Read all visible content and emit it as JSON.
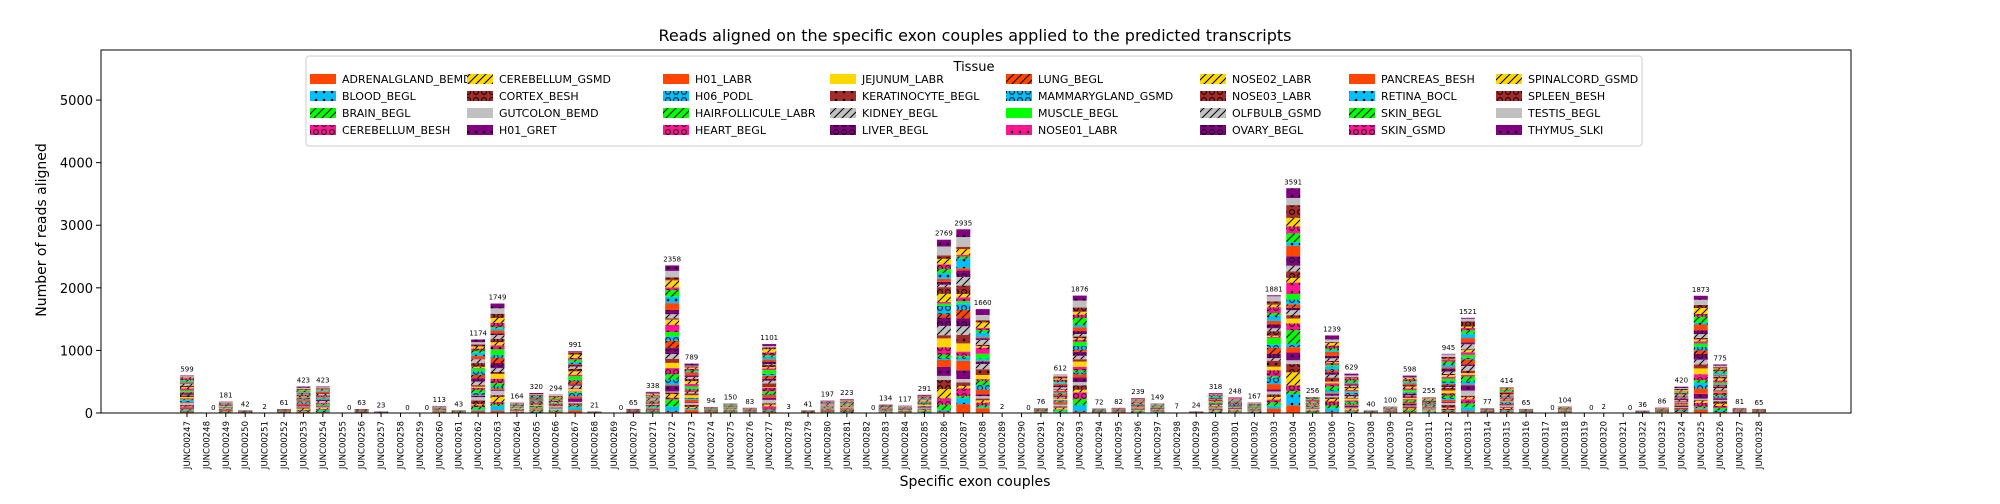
{
  "chart_data": {
    "type": "bar",
    "stacked": true,
    "title": "Reads aligned on the specific exon couples applied to the predicted transcripts",
    "xlabel": "Specific exon couples",
    "ylabel": "Number of reads aligned",
    "ylim": [
      0,
      5800
    ],
    "yticks": [
      0,
      1000,
      2000,
      3000,
      4000,
      5000
    ],
    "grid": false,
    "legend": {
      "title": "Tissue",
      "placement": "top-center",
      "columns": 8
    },
    "categories": [
      "JUNC00247",
      "JUNC00248",
      "JUNC00249",
      "JUNC00250",
      "JUNC00251",
      "JUNC00252",
      "JUNC00253",
      "JUNC00254",
      "JUNC00255",
      "JUNC00256",
      "JUNC00257",
      "JUNC00258",
      "JUNC00259",
      "JUNC00260",
      "JUNC00261",
      "JUNC00262",
      "JUNC00263",
      "JUNC00264",
      "JUNC00265",
      "JUNC00266",
      "JUNC00267",
      "JUNC00268",
      "JUNC00269",
      "JUNC00270",
      "JUNC00271",
      "JUNC00272",
      "JUNC00273",
      "JUNC00274",
      "JUNC00275",
      "JUNC00276",
      "JUNC00277",
      "JUNC00278",
      "JUNC00279",
      "JUNC00280",
      "JUNC00281",
      "JUNC00282",
      "JUNC00283",
      "JUNC00284",
      "JUNC00285",
      "JUNC00286",
      "JUNC00287",
      "JUNC00288",
      "JUNC00289",
      "JUNC00290",
      "JUNC00291",
      "JUNC00292",
      "JUNC00293",
      "JUNC00294",
      "JUNC00295",
      "JUNC00296",
      "JUNC00297",
      "JUNC00298",
      "JUNC00299",
      "JUNC00300",
      "JUNC00301",
      "JUNC00302",
      "JUNC00303",
      "JUNC00304",
      "JUNC00305",
      "JUNC00306",
      "JUNC00307",
      "JUNC00308",
      "JUNC00309",
      "JUNC00310",
      "JUNC00311",
      "JUNC00312",
      "JUNC00313",
      "JUNC00314",
      "JUNC00315",
      "JUNC00316",
      "JUNC00317",
      "JUNC00318",
      "JUNC00319",
      "JUNC00320",
      "JUNC00321",
      "JUNC00322",
      "JUNC00323",
      "JUNC00324",
      "JUNC00325",
      "JUNC00326",
      "JUNC00327",
      "JUNC00328"
    ],
    "totals": [
      599,
      0,
      181,
      42,
      2,
      61,
      423,
      423,
      0,
      63,
      23,
      0,
      0,
      113,
      43,
      1174,
      1749,
      164,
      320,
      294,
      991,
      21,
      0,
      65,
      338,
      2358,
      789,
      94,
      150,
      83,
      1101,
      3,
      41,
      197,
      223,
      0,
      134,
      117,
      291,
      2769,
      2935,
      1660,
      2,
      0,
      76,
      612,
      1876,
      72,
      82,
      239,
      149,
      7,
      24,
      318,
      248,
      167,
      1881,
      3591,
      256,
      1239,
      629,
      40,
      100,
      598,
      255,
      945,
      1521,
      77,
      414,
      65,
      0,
      104,
      0,
      2,
      0,
      36,
      86,
      420,
      1873,
      775,
      81,
      65
    ],
    "series": [
      {
        "name": "ADRENALGLAND_BEMD",
        "color": "#ff4500",
        "hatch": "none"
      },
      {
        "name": "BLOOD_BEGL",
        "color": "#00bfff",
        "hatch": "dot"
      },
      {
        "name": "BRAIN_BEGL",
        "color": "#00ff00",
        "hatch": "slash"
      },
      {
        "name": "CEREBELLUM_BESH",
        "color": "#ff1493",
        "hatch": "circle"
      },
      {
        "name": "CEREBELLUM_GSMD",
        "color": "#ffd700",
        "hatch": "slash"
      },
      {
        "name": "CORTEX_BESH",
        "color": "#a52a2a",
        "hatch": "circle"
      },
      {
        "name": "GUTCOLON_BEMD",
        "color": "#c0c0c0",
        "hatch": "none"
      },
      {
        "name": "H01_GRET",
        "color": "#800080",
        "hatch": "dot"
      },
      {
        "name": "H01_LABR",
        "color": "#ff4500",
        "hatch": "none"
      },
      {
        "name": "H06_PODL",
        "color": "#00bfff",
        "hatch": "circle"
      },
      {
        "name": "HAIRFOLLICULE_LABR",
        "color": "#00ff00",
        "hatch": "slash"
      },
      {
        "name": "HEART_BEGL",
        "color": "#ff1493",
        "hatch": "circle"
      },
      {
        "name": "JEJUNUM_LABR",
        "color": "#ffd700",
        "hatch": "none"
      },
      {
        "name": "KERATINOCYTE_BEGL",
        "color": "#a52a2a",
        "hatch": "dot"
      },
      {
        "name": "KIDNEY_BEGL",
        "color": "#c0c0c0",
        "hatch": "slash"
      },
      {
        "name": "LIVER_BEGL",
        "color": "#800080",
        "hatch": "circle"
      },
      {
        "name": "LUNG_BEGL",
        "color": "#ff4500",
        "hatch": "slash"
      },
      {
        "name": "MAMMARYGLAND_GSMD",
        "color": "#00bfff",
        "hatch": "circle"
      },
      {
        "name": "MUSCLE_BEGL",
        "color": "#00ff00",
        "hatch": "none"
      },
      {
        "name": "NOSE01_LABR",
        "color": "#ff1493",
        "hatch": "dot"
      },
      {
        "name": "NOSE02_LABR",
        "color": "#ffd700",
        "hatch": "slash"
      },
      {
        "name": "NOSE03_LABR",
        "color": "#a52a2a",
        "hatch": "circle"
      },
      {
        "name": "OLFBULB_GSMD",
        "color": "#c0c0c0",
        "hatch": "slash"
      },
      {
        "name": "OVARY_BEGL",
        "color": "#800080",
        "hatch": "circle"
      },
      {
        "name": "PANCREAS_BESH",
        "color": "#ff4500",
        "hatch": "none"
      },
      {
        "name": "RETINA_BOCL",
        "color": "#00bfff",
        "hatch": "dot"
      },
      {
        "name": "SKIN_BEGL",
        "color": "#00ff00",
        "hatch": "slash"
      },
      {
        "name": "SKIN_GSMD",
        "color": "#ff1493",
        "hatch": "circle"
      },
      {
        "name": "SPINALCORD_GSMD",
        "color": "#ffd700",
        "hatch": "slash"
      },
      {
        "name": "SPLEEN_BESH",
        "color": "#a52a2a",
        "hatch": "circle"
      },
      {
        "name": "TESTIS_BEGL",
        "color": "#c0c0c0",
        "hatch": "none"
      },
      {
        "name": "THYMUS_SLKI",
        "color": "#800080",
        "hatch": "dot"
      }
    ]
  }
}
